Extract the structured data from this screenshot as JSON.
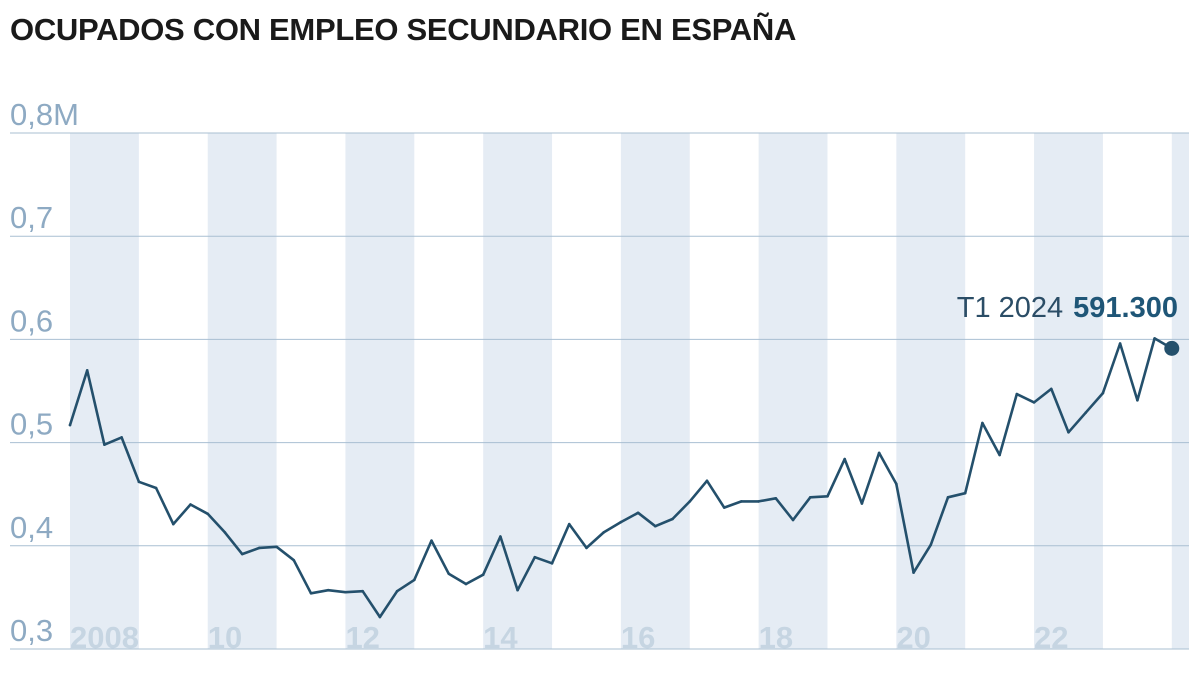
{
  "title": "OCUPADOS CON EMPLEO SECUNDARIO EN ESPAÑA",
  "colors": {
    "line": "#24506c",
    "band": "#e5ecf4",
    "grid": "#a9bfd2",
    "ytick": "#8eaac3",
    "xtick": "#c6d5e2",
    "annotation_value": "#1f5677"
  },
  "chart_data": {
    "type": "line",
    "title": "OCUPADOS CON EMPLEO SECUNDARIO EN ESPAÑA",
    "xlabel": "",
    "ylabel": "",
    "ylim": [
      0.3,
      0.8
    ],
    "xlim": [
      2008.0,
      2024.25
    ],
    "grid": true,
    "y_ticks": [
      {
        "value": 0.8,
        "label": "0,8M"
      },
      {
        "value": 0.7,
        "label": "0,7"
      },
      {
        "value": 0.6,
        "label": "0,6"
      },
      {
        "value": 0.5,
        "label": "0,5"
      },
      {
        "value": 0.4,
        "label": "0,4"
      },
      {
        "value": 0.3,
        "label": "0,3"
      }
    ],
    "x_ticks": [
      {
        "value": 2008,
        "label": "2008"
      },
      {
        "value": 2010,
        "label": "10"
      },
      {
        "value": 2012,
        "label": "12"
      },
      {
        "value": 2014,
        "label": "14"
      },
      {
        "value": 2016,
        "label": "16"
      },
      {
        "value": 2018,
        "label": "18"
      },
      {
        "value": 2020,
        "label": "20"
      },
      {
        "value": 2022,
        "label": "22"
      }
    ],
    "shaded_years": [
      2008,
      2010,
      2012,
      2014,
      2016,
      2018,
      2020,
      2022,
      2024
    ],
    "series": [
      {
        "points": [
          [
            2008.0,
            0.517
          ],
          [
            2008.25,
            0.57
          ],
          [
            2008.5,
            0.498
          ],
          [
            2008.75,
            0.505
          ],
          [
            2009.0,
            0.462
          ],
          [
            2009.25,
            0.456
          ],
          [
            2009.5,
            0.421
          ],
          [
            2009.75,
            0.44
          ],
          [
            2010.0,
            0.431
          ],
          [
            2010.25,
            0.413
          ],
          [
            2010.5,
            0.392
          ],
          [
            2010.75,
            0.398
          ],
          [
            2011.0,
            0.399
          ],
          [
            2011.25,
            0.386
          ],
          [
            2011.5,
            0.354
          ],
          [
            2011.75,
            0.357
          ],
          [
            2012.0,
            0.355
          ],
          [
            2012.25,
            0.356
          ],
          [
            2012.5,
            0.331
          ],
          [
            2012.75,
            0.356
          ],
          [
            2013.0,
            0.367
          ],
          [
            2013.25,
            0.405
          ],
          [
            2013.5,
            0.373
          ],
          [
            2013.75,
            0.363
          ],
          [
            2014.0,
            0.372
          ],
          [
            2014.25,
            0.409
          ],
          [
            2014.5,
            0.357
          ],
          [
            2014.75,
            0.389
          ],
          [
            2015.0,
            0.383
          ],
          [
            2015.25,
            0.421
          ],
          [
            2015.5,
            0.398
          ],
          [
            2015.75,
            0.413
          ],
          [
            2016.0,
            0.423
          ],
          [
            2016.25,
            0.432
          ],
          [
            2016.5,
            0.419
          ],
          [
            2016.75,
            0.426
          ],
          [
            2017.0,
            0.443
          ],
          [
            2017.25,
            0.463
          ],
          [
            2017.5,
            0.437
          ],
          [
            2017.75,
            0.443
          ],
          [
            2018.0,
            0.443
          ],
          [
            2018.25,
            0.446
          ],
          [
            2018.5,
            0.425
          ],
          [
            2018.75,
            0.447
          ],
          [
            2019.0,
            0.448
          ],
          [
            2019.25,
            0.484
          ],
          [
            2019.5,
            0.441
          ],
          [
            2019.75,
            0.49
          ],
          [
            2020.0,
            0.46
          ],
          [
            2020.25,
            0.374
          ],
          [
            2020.5,
            0.401
          ],
          [
            2020.75,
            0.447
          ],
          [
            2021.0,
            0.451
          ],
          [
            2021.25,
            0.519
          ],
          [
            2021.5,
            0.488
          ],
          [
            2021.75,
            0.547
          ],
          [
            2022.0,
            0.539
          ],
          [
            2022.25,
            0.552
          ],
          [
            2022.5,
            0.51
          ],
          [
            2022.75,
            0.529
          ],
          [
            2023.0,
            0.548
          ],
          [
            2023.25,
            0.596
          ],
          [
            2023.5,
            0.541
          ],
          [
            2023.75,
            0.601
          ],
          [
            2024.0,
            0.5913
          ]
        ]
      }
    ],
    "annotation": {
      "x": 2024.0,
      "y": 0.5913,
      "label": "T1 2024",
      "value": "591.300"
    }
  }
}
